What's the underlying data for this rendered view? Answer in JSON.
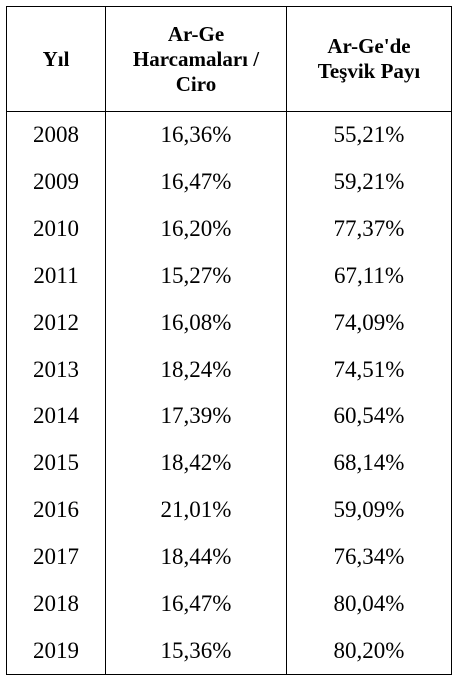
{
  "table": {
    "headers": [
      {
        "lines": [
          "Yıl"
        ]
      },
      {
        "lines": [
          "Ar-Ge",
          "Harcamaları /",
          "Ciro"
        ]
      },
      {
        "lines": [
          "Ar-Ge'de",
          "Teşvik Payı"
        ]
      }
    ],
    "rows": [
      [
        "2008",
        "16,36%",
        "55,21%"
      ],
      [
        "2009",
        "16,47%",
        "59,21%"
      ],
      [
        "2010",
        "16,20%",
        "77,37%"
      ],
      [
        "2011",
        "15,27%",
        "67,11%"
      ],
      [
        "2012",
        "16,08%",
        "74,09%"
      ],
      [
        "2013",
        "18,24%",
        "74,51%"
      ],
      [
        "2014",
        "17,39%",
        "60,54%"
      ],
      [
        "2015",
        "18,42%",
        "68,14%"
      ],
      [
        "2016",
        "21,01%",
        "59,09%"
      ],
      [
        "2017",
        "18,44%",
        "76,34%"
      ],
      [
        "2018",
        "16,47%",
        "80,04%"
      ],
      [
        "2019",
        "15,36%",
        "80,20%"
      ]
    ]
  }
}
